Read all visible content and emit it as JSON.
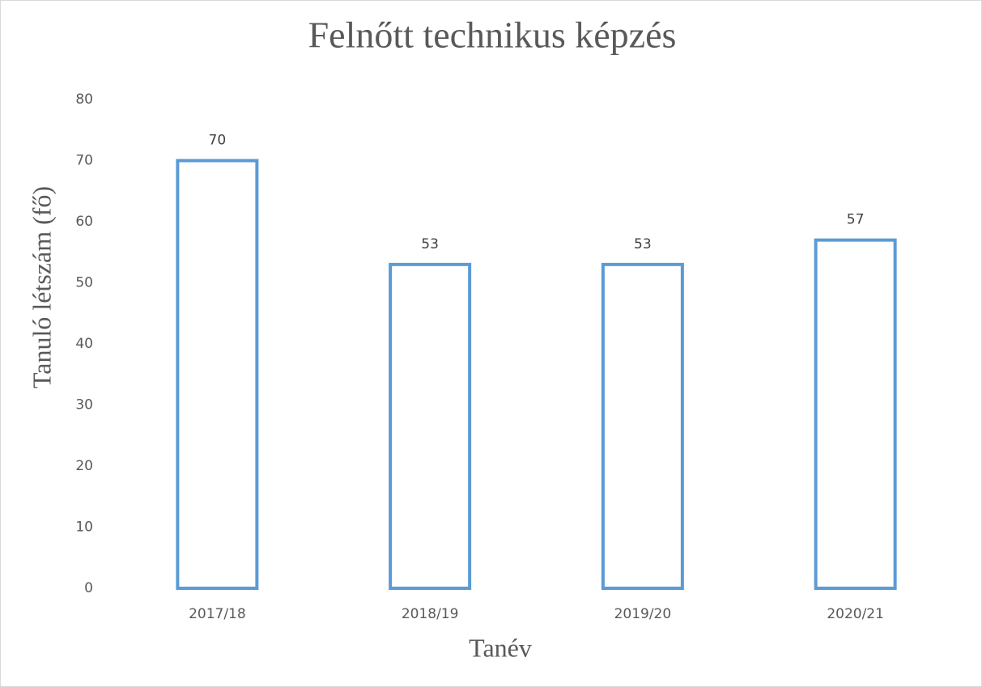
{
  "chart_data": {
    "type": "bar",
    "title": "Felnőtt technikus képzés",
    "x_label": "Tanév",
    "y_label": "Tanuló létszám (fő)",
    "categories": [
      "2017/18",
      "2018/19",
      "2019/20",
      "2020/21"
    ],
    "values": [
      70,
      53,
      53,
      57
    ],
    "color": "#5b9bd5",
    "ylim": [
      0,
      80
    ],
    "yticks": [
      0,
      10,
      20,
      30,
      40,
      50,
      60,
      70,
      80
    ],
    "grid": false
  }
}
